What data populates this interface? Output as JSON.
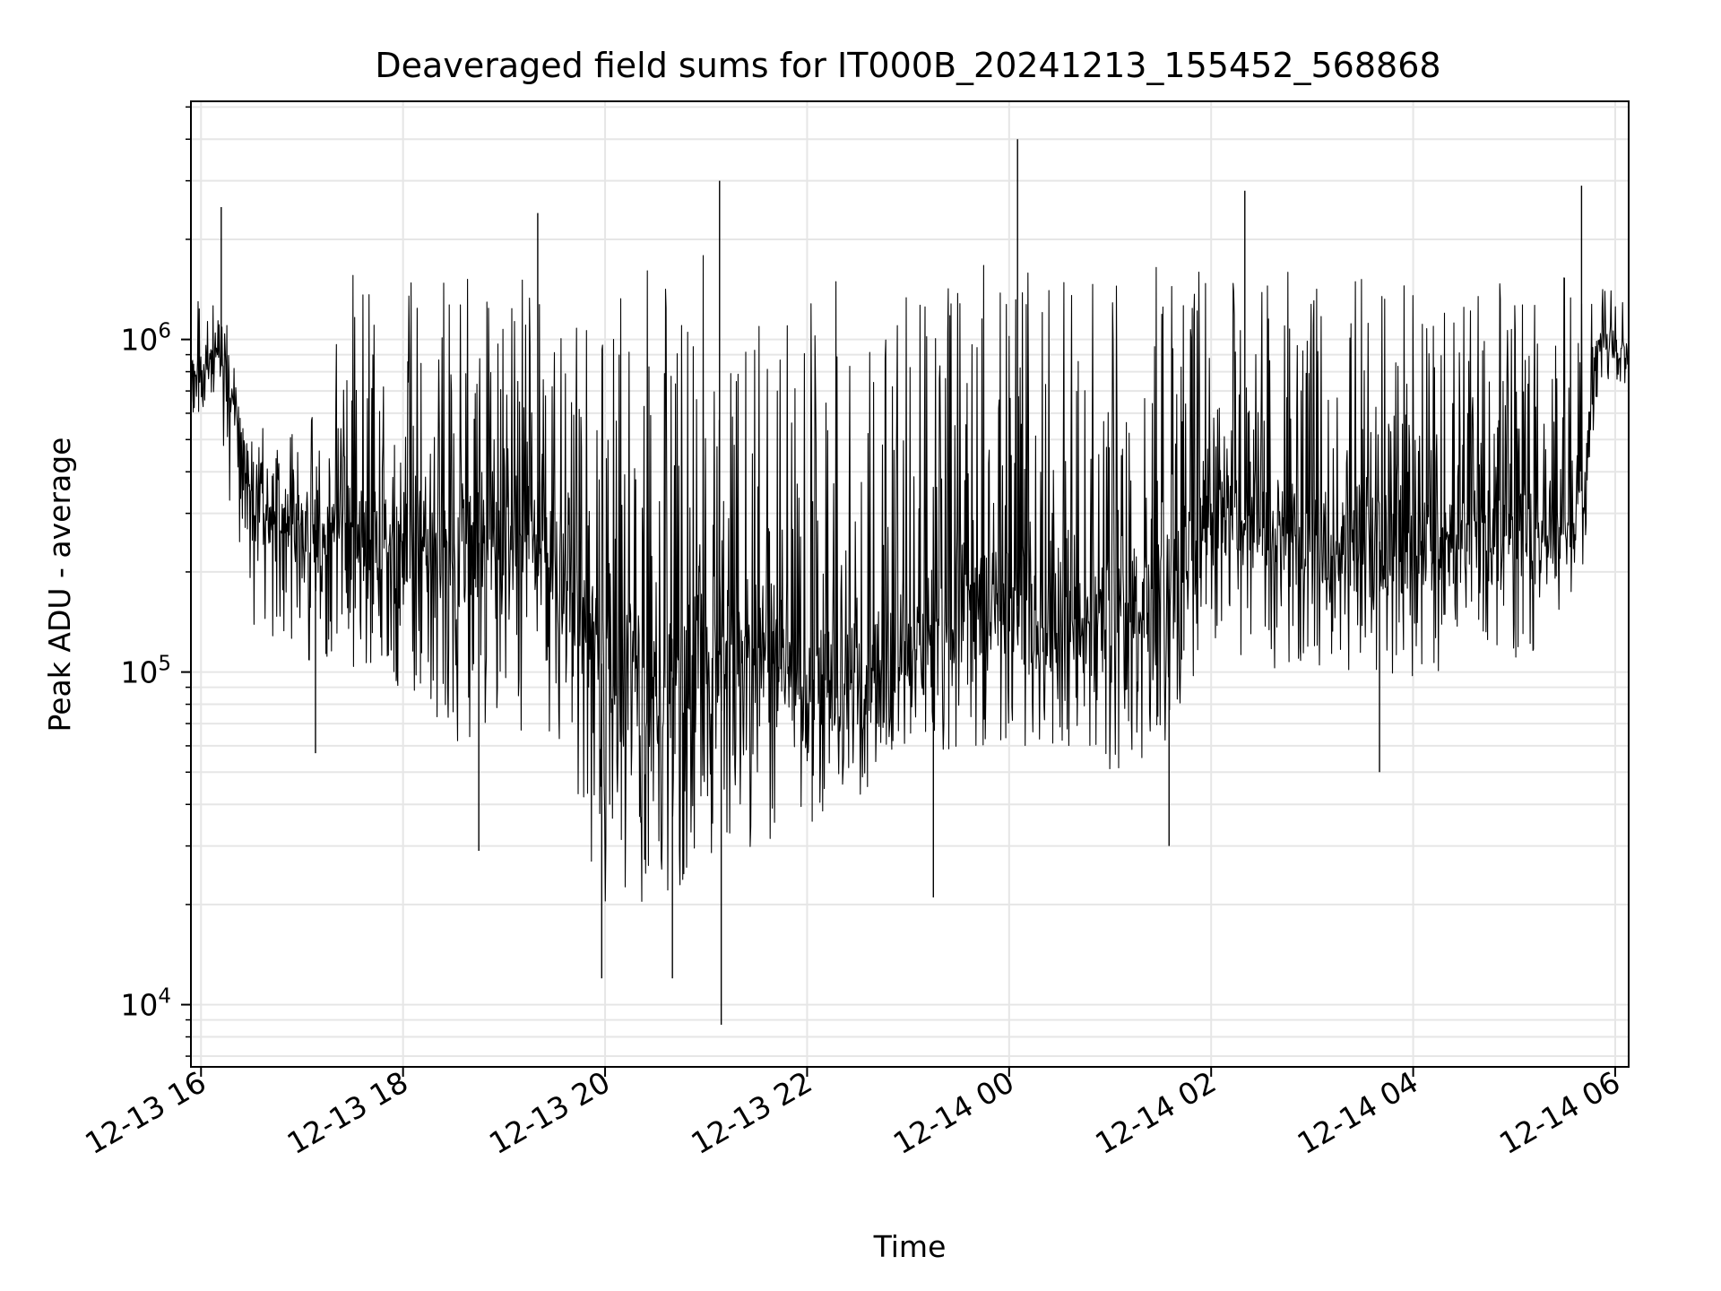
{
  "chart_data": {
    "type": "line",
    "title": "Deaveraged field sums for IT000B_20241213_155452_568868",
    "xlabel": "Time",
    "ylabel": "Peak ADU - average",
    "y_scale": "log",
    "ylim": [
      6500,
      5200000
    ],
    "xlim": [
      "2024-12-13 15:54",
      "2024-12-14 06:08"
    ],
    "x_ticks": [
      {
        "t": "2024-12-13 16:00",
        "label": "12-13 16"
      },
      {
        "t": "2024-12-13 18:00",
        "label": "12-13 18"
      },
      {
        "t": "2024-12-13 20:00",
        "label": "12-13 20"
      },
      {
        "t": "2024-12-13 22:00",
        "label": "12-13 22"
      },
      {
        "t": "2024-12-14 00:00",
        "label": "12-14 00"
      },
      {
        "t": "2024-12-14 02:00",
        "label": "12-14 02"
      },
      {
        "t": "2024-12-14 04:00",
        "label": "12-14 04"
      },
      {
        "t": "2024-12-14 06:00",
        "label": "12-14 06"
      }
    ],
    "y_ticks": [
      {
        "value": 10000,
        "base": "10",
        "exp": "4"
      },
      {
        "value": 100000,
        "base": "10",
        "exp": "5"
      },
      {
        "value": 1000000,
        "base": "10",
        "exp": "6"
      }
    ],
    "grid": true,
    "line_color": "#000000",
    "grid_color": "#e6e6e6",
    "series": [
      {
        "x": [
          "2024-12-13 15:54",
          "2024-12-13 16:00",
          "2024-12-13 16:10",
          "2024-12-13 16:20",
          "2024-12-13 16:30",
          "2024-12-13 16:40",
          "2024-12-13 17:00",
          "2024-12-13 17:30",
          "2024-12-13 18:00",
          "2024-12-13 18:30",
          "2024-12-13 19:00",
          "2024-12-13 19:30",
          "2024-12-13 20:00",
          "2024-12-13 20:30",
          "2024-12-13 21:00",
          "2024-12-13 21:30",
          "2024-12-13 22:00",
          "2024-12-13 22:30",
          "2024-12-13 23:00",
          "2024-12-13 23:30",
          "2024-12-14 00:00",
          "2024-12-14 00:30",
          "2024-12-14 01:00",
          "2024-12-14 01:30",
          "2024-12-14 02:00",
          "2024-12-14 02:30",
          "2024-12-14 03:00",
          "2024-12-14 03:30",
          "2024-12-14 04:00",
          "2024-12-14 04:30",
          "2024-12-14 05:00",
          "2024-12-14 05:30",
          "2024-12-14 05:40",
          "2024-12-14 05:50",
          "2024-12-14 06:00",
          "2024-12-14 06:08"
        ],
        "y": [
          800000,
          800000,
          900000,
          600000,
          350000,
          280000,
          270000,
          260000,
          250000,
          230000,
          260000,
          240000,
          100000,
          90000,
          110000,
          120000,
          100000,
          95000,
          110000,
          180000,
          160000,
          150000,
          140000,
          160000,
          300000,
          280000,
          260000,
          250000,
          240000,
          260000,
          250000,
          260000,
          350000,
          1000000,
          950000,
          900000
        ],
        "hi": [
          1100000,
          1400000,
          1800000,
          800000,
          600000,
          600000,
          500000,
          1600000,
          1700000,
          1500000,
          1700000,
          1600000,
          1500000,
          1700000,
          1800000,
          1600000,
          1700000,
          1500000,
          1400000,
          1700000,
          1800000,
          1600000,
          1600000,
          1700000,
          1700000,
          1600000,
          1600000,
          1600000,
          1500000,
          1600000,
          1500000,
          1600000,
          1300000,
          1600000,
          1500000,
          1400000
        ],
        "lo": [
          600000,
          600000,
          650000,
          220000,
          140000,
          130000,
          110000,
          100000,
          90000,
          60000,
          70000,
          60000,
          20000,
          20000,
          25000,
          30000,
          35000,
          40000,
          50000,
          60000,
          60000,
          55000,
          50000,
          55000,
          120000,
          100000,
          100000,
          100000,
          90000,
          110000,
          110000,
          120000,
          180000,
          700000,
          750000,
          700000
        ],
        "spikes": [
          {
            "t": "2024-12-13 16:12",
            "y": 2500000
          },
          {
            "t": "2024-12-13 19:20",
            "y": 2400000
          },
          {
            "t": "2024-12-13 21:08",
            "y": 3000000
          },
          {
            "t": "2024-12-13 21:09",
            "y": 8700
          },
          {
            "t": "2024-12-13 19:58",
            "y": 12000
          },
          {
            "t": "2024-12-13 20:40",
            "y": 12000
          },
          {
            "t": "2024-12-14 00:05",
            "y": 4000000
          },
          {
            "t": "2024-12-14 02:20",
            "y": 2800000
          },
          {
            "t": "2024-12-14 05:40",
            "y": 2900000
          },
          {
            "t": "2024-12-14 03:40",
            "y": 50000
          },
          {
            "t": "2024-12-14 01:35",
            "y": 30000
          },
          {
            "t": "2024-12-13 18:45",
            "y": 29000
          },
          {
            "t": "2024-12-13 17:08",
            "y": 57000
          },
          {
            "t": "2024-12-13 23:15",
            "y": 21000
          }
        ]
      }
    ]
  }
}
